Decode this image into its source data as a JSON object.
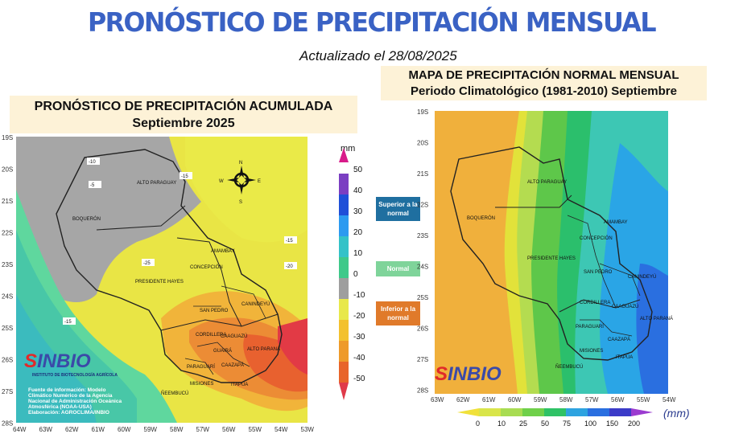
{
  "title": "PRONÓSTICO DE PRECIPITACIÓN MENSUAL",
  "updated": "Actualizado el 28/08/2025",
  "left_panel": {
    "title_line1": "PRONÓSTICO DE PRECIPITACIÓN ACUMULADA",
    "title_line2": "Septiembre 2025",
    "lat_labels": [
      "19S",
      "20S",
      "21S",
      "22S",
      "23S",
      "24S",
      "25S",
      "26S",
      "27S",
      "28S"
    ],
    "lon_labels": [
      "64W",
      "63W",
      "62W",
      "61W",
      "60W",
      "59W",
      "58W",
      "57W",
      "56W",
      "55W",
      "54W",
      "53W"
    ],
    "contour_labels": [
      "-10",
      "-5",
      "-15",
      "-15",
      "-20",
      "-25",
      "-15",
      "5"
    ],
    "compass": [
      "N",
      "E",
      "S",
      "W"
    ],
    "regions": [
      "ALTO PARAGUAY",
      "BOQUERÓN",
      "PRESIDENTE HAYES",
      "CONCEPCIÓN",
      "AMAMBAY",
      "SAN PEDRO",
      "CANINDEYÚ",
      "CORDILLERA",
      "CAAGUAZÚ",
      "GUAIRÁ",
      "ALTO PARANÁ",
      "CAAZAPÁ",
      "PARAGUARÍ",
      "MISIONES",
      "ÑEEMBUCÚ",
      "ITAPÚA"
    ],
    "credit": [
      "Fuente de información: Modelo",
      "Climático Numérico de la Agencia",
      "Nacional de Administración Oceánica",
      "Atmosférica (NOAA-USA)",
      "Elaboración: AGROCLIMA/INBIO"
    ],
    "logo": "INBIO",
    "logo_sub": "INSTITUTO DE BIOTECNOLOGÍA AGRÍCOLA"
  },
  "legend": {
    "unit": "mm",
    "ticks": [
      "50",
      "40",
      "30",
      "20",
      "10",
      "0",
      "-10",
      "-20",
      "-30",
      "-40",
      "-50"
    ],
    "colors": [
      "#d81b8a",
      "#7b3fc2",
      "#1f4fd8",
      "#2c9af0",
      "#34c2c8",
      "#3fc98a",
      "#9e9e9e",
      "#e8e84a",
      "#f3c12e",
      "#ee9a2a",
      "#e8642a",
      "#e03a4a"
    ],
    "categories": [
      {
        "label": "Superior a la normal",
        "color": "#1f6fa0"
      },
      {
        "label": "Normal",
        "color": "#7fd49a"
      },
      {
        "label": "Inferior a la normal",
        "color": "#e07a2a"
      }
    ]
  },
  "right_panel": {
    "title_line1": "MAPA DE PRECIPITACIÓN  NORMAL MENSUAL",
    "title_line2": "Periodo Climatológico (1981-2010) Septiembre",
    "lat_labels": [
      "19S",
      "20S",
      "21S",
      "22S",
      "23S",
      "24S",
      "25S",
      "26S",
      "27S",
      "28S"
    ],
    "lon_labels": [
      "63W",
      "62W",
      "61W",
      "60W",
      "59W",
      "58W",
      "57W",
      "56W",
      "55W",
      "54W"
    ],
    "regions": [
      "ALTO PARAGUAY",
      "BOQUERÓN",
      "PRESIDENTE HAYES",
      "CONCEPCIÓN",
      "AMAMBAY",
      "SAN PEDRO",
      "CANINDEYÚ",
      "CORDILLERA",
      "CAAGUAZÚ",
      "ALTO PARANÁ",
      "PARAGUARÍ",
      "CAAZAPÁ",
      "MISIONES",
      "ITAPÚA",
      "ÑEEMBUCÚ"
    ],
    "logo": "INBIO",
    "legend_ticks": [
      "0",
      "10",
      "25",
      "50",
      "75",
      "100",
      "150",
      "200"
    ],
    "legend_colors": [
      "#f0e13a",
      "#d9e54a",
      "#a8dc52",
      "#6fd04a",
      "#2fc266",
      "#2ea3e0",
      "#2a6fe0",
      "#3b3bc8",
      "#9b3bd0"
    ],
    "unit": "(mm)"
  }
}
